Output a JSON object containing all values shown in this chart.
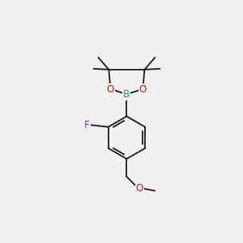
{
  "background_color": "#f0f0f0",
  "bond_color": "#1a1a1a",
  "bond_width": 1.3,
  "atom_colors": {
    "B": "#00bb00",
    "O": "#ff0000",
    "F": "#dd00dd",
    "C": "#1a1a1a"
  },
  "fig_width": 3.0,
  "fig_height": 3.0,
  "dpi": 100,
  "xlim": [
    -1.6,
    1.6
  ],
  "ylim": [
    -2.3,
    2.1
  ]
}
